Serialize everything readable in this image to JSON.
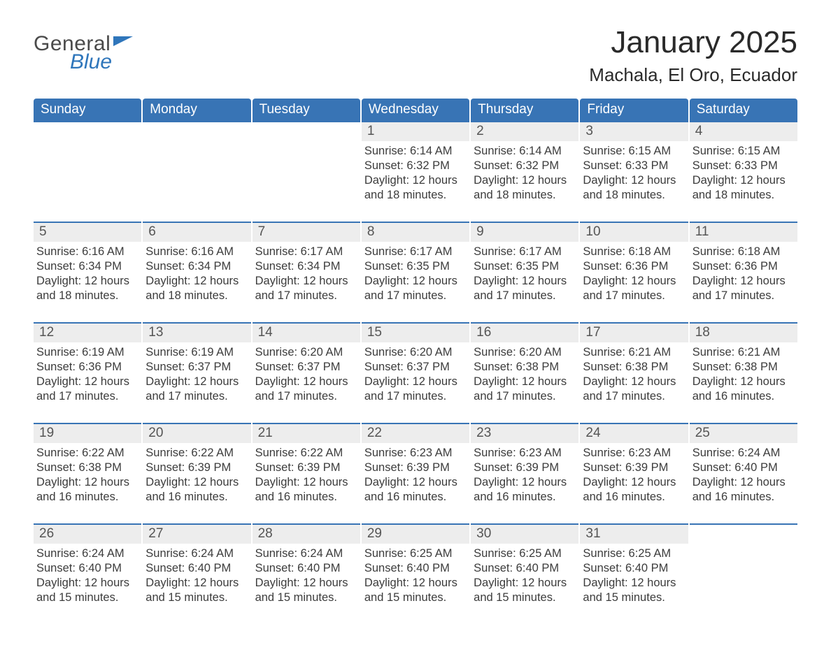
{
  "logo": {
    "word1": "General",
    "word2": "Blue"
  },
  "title": {
    "month": "January 2025",
    "location": "Machala, El Oro, Ecuador"
  },
  "colors": {
    "header_bg": "#3874b5",
    "header_text": "#ffffff",
    "daynum_bg": "#ededed",
    "daynum_text": "#555555",
    "body_text": "#3c3c3c",
    "rule": "#3874b5",
    "logo_blue": "#2f76bb",
    "logo_gray": "#4a4a4a"
  },
  "weekdays": [
    "Sunday",
    "Monday",
    "Tuesday",
    "Wednesday",
    "Thursday",
    "Friday",
    "Saturday"
  ],
  "grid": {
    "leading_blanks": 3,
    "trailing_blanks": 1
  },
  "days": [
    {
      "n": "1",
      "sunrise": "6:14 AM",
      "sunset": "6:32 PM",
      "dl_h": "12",
      "dl_m": "18"
    },
    {
      "n": "2",
      "sunrise": "6:14 AM",
      "sunset": "6:32 PM",
      "dl_h": "12",
      "dl_m": "18"
    },
    {
      "n": "3",
      "sunrise": "6:15 AM",
      "sunset": "6:33 PM",
      "dl_h": "12",
      "dl_m": "18"
    },
    {
      "n": "4",
      "sunrise": "6:15 AM",
      "sunset": "6:33 PM",
      "dl_h": "12",
      "dl_m": "18"
    },
    {
      "n": "5",
      "sunrise": "6:16 AM",
      "sunset": "6:34 PM",
      "dl_h": "12",
      "dl_m": "18"
    },
    {
      "n": "6",
      "sunrise": "6:16 AM",
      "sunset": "6:34 PM",
      "dl_h": "12",
      "dl_m": "18"
    },
    {
      "n": "7",
      "sunrise": "6:17 AM",
      "sunset": "6:34 PM",
      "dl_h": "12",
      "dl_m": "17"
    },
    {
      "n": "8",
      "sunrise": "6:17 AM",
      "sunset": "6:35 PM",
      "dl_h": "12",
      "dl_m": "17"
    },
    {
      "n": "9",
      "sunrise": "6:17 AM",
      "sunset": "6:35 PM",
      "dl_h": "12",
      "dl_m": "17"
    },
    {
      "n": "10",
      "sunrise": "6:18 AM",
      "sunset": "6:36 PM",
      "dl_h": "12",
      "dl_m": "17"
    },
    {
      "n": "11",
      "sunrise": "6:18 AM",
      "sunset": "6:36 PM",
      "dl_h": "12",
      "dl_m": "17"
    },
    {
      "n": "12",
      "sunrise": "6:19 AM",
      "sunset": "6:36 PM",
      "dl_h": "12",
      "dl_m": "17"
    },
    {
      "n": "13",
      "sunrise": "6:19 AM",
      "sunset": "6:37 PM",
      "dl_h": "12",
      "dl_m": "17"
    },
    {
      "n": "14",
      "sunrise": "6:20 AM",
      "sunset": "6:37 PM",
      "dl_h": "12",
      "dl_m": "17"
    },
    {
      "n": "15",
      "sunrise": "6:20 AM",
      "sunset": "6:37 PM",
      "dl_h": "12",
      "dl_m": "17"
    },
    {
      "n": "16",
      "sunrise": "6:20 AM",
      "sunset": "6:38 PM",
      "dl_h": "12",
      "dl_m": "17"
    },
    {
      "n": "17",
      "sunrise": "6:21 AM",
      "sunset": "6:38 PM",
      "dl_h": "12",
      "dl_m": "17"
    },
    {
      "n": "18",
      "sunrise": "6:21 AM",
      "sunset": "6:38 PM",
      "dl_h": "12",
      "dl_m": "16"
    },
    {
      "n": "19",
      "sunrise": "6:22 AM",
      "sunset": "6:38 PM",
      "dl_h": "12",
      "dl_m": "16"
    },
    {
      "n": "20",
      "sunrise": "6:22 AM",
      "sunset": "6:39 PM",
      "dl_h": "12",
      "dl_m": "16"
    },
    {
      "n": "21",
      "sunrise": "6:22 AM",
      "sunset": "6:39 PM",
      "dl_h": "12",
      "dl_m": "16"
    },
    {
      "n": "22",
      "sunrise": "6:23 AM",
      "sunset": "6:39 PM",
      "dl_h": "12",
      "dl_m": "16"
    },
    {
      "n": "23",
      "sunrise": "6:23 AM",
      "sunset": "6:39 PM",
      "dl_h": "12",
      "dl_m": "16"
    },
    {
      "n": "24",
      "sunrise": "6:23 AM",
      "sunset": "6:39 PM",
      "dl_h": "12",
      "dl_m": "16"
    },
    {
      "n": "25",
      "sunrise": "6:24 AM",
      "sunset": "6:40 PM",
      "dl_h": "12",
      "dl_m": "16"
    },
    {
      "n": "26",
      "sunrise": "6:24 AM",
      "sunset": "6:40 PM",
      "dl_h": "12",
      "dl_m": "15"
    },
    {
      "n": "27",
      "sunrise": "6:24 AM",
      "sunset": "6:40 PM",
      "dl_h": "12",
      "dl_m": "15"
    },
    {
      "n": "28",
      "sunrise": "6:24 AM",
      "sunset": "6:40 PM",
      "dl_h": "12",
      "dl_m": "15"
    },
    {
      "n": "29",
      "sunrise": "6:25 AM",
      "sunset": "6:40 PM",
      "dl_h": "12",
      "dl_m": "15"
    },
    {
      "n": "30",
      "sunrise": "6:25 AM",
      "sunset": "6:40 PM",
      "dl_h": "12",
      "dl_m": "15"
    },
    {
      "n": "31",
      "sunrise": "6:25 AM",
      "sunset": "6:40 PM",
      "dl_h": "12",
      "dl_m": "15"
    }
  ],
  "labels": {
    "sunrise": "Sunrise: ",
    "sunset": "Sunset: ",
    "daylight_prefix": "Daylight: ",
    "daylight_mid": " hours and ",
    "daylight_suffix": " minutes."
  }
}
